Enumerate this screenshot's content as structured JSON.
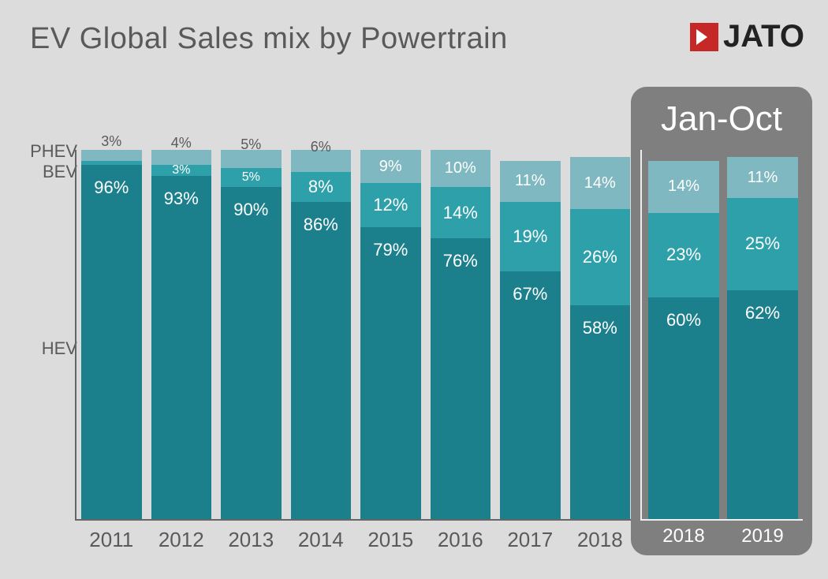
{
  "title": "EV Global Sales mix by Powertrain",
  "logo": {
    "text": "JATO",
    "mark_bg": "#c62828",
    "mark_fg": "#ffffff"
  },
  "colors": {
    "hev": "#1c7f8c",
    "bev": "#2ea0aa",
    "phev": "#7fb8c0",
    "axis": "#666666",
    "panel_bg": "#7f7f7f",
    "panel_axis": "#eeeeee",
    "bg": "#dcdcdc",
    "title_color": "#5a5a5a",
    "label_color": "#5a5a5a",
    "panel_text": "#ffffff"
  },
  "series_labels": {
    "phev": "PHEV",
    "bev": "BEV",
    "hev": "HEV"
  },
  "main_chart": {
    "type": "stacked-bar-100pct",
    "ymax": 100,
    "categories": [
      "2011",
      "2012",
      "2013",
      "2014",
      "2015",
      "2016",
      "2017",
      "2018"
    ],
    "bars": [
      {
        "hev": 96,
        "bev": 1,
        "phev": 3,
        "hev_label": "96%",
        "bev_label": "1%",
        "phev_label": "3%",
        "show_bev_label": false
      },
      {
        "hev": 93,
        "bev": 3,
        "phev": 4,
        "hev_label": "93%",
        "bev_label": "3%",
        "phev_label": "4%"
      },
      {
        "hev": 90,
        "bev": 5,
        "phev": 5,
        "hev_label": "90%",
        "bev_label": "5%",
        "phev_label": "5%"
      },
      {
        "hev": 86,
        "bev": 8,
        "phev": 6,
        "hev_label": "86%",
        "bev_label": "8%",
        "phev_label": "6%"
      },
      {
        "hev": 79,
        "bev": 12,
        "phev": 9,
        "hev_label": "79%",
        "bev_label": "12%",
        "phev_label": "9%"
      },
      {
        "hev": 76,
        "bev": 14,
        "phev": 10,
        "hev_label": "76%",
        "bev_label": "14%",
        "phev_label": "10%"
      },
      {
        "hev": 67,
        "bev": 19,
        "phev": 11,
        "hev_label": "67%",
        "bev_label": "19%",
        "phev_label": "11%"
      },
      {
        "hev": 58,
        "bev": 26,
        "phev": 14,
        "hev_label": "58%",
        "bev_label": "26%",
        "phev_label": "14%"
      }
    ]
  },
  "panel": {
    "title": "Jan-Oct",
    "categories": [
      "2018",
      "2019"
    ],
    "bars": [
      {
        "hev": 60,
        "bev": 23,
        "phev": 14,
        "hev_label": "60%",
        "bev_label": "23%",
        "phev_label": "14%"
      },
      {
        "hev": 62,
        "bev": 25,
        "phev": 11,
        "hev_label": "62%",
        "bev_label": "25%",
        "phev_label": "11%"
      }
    ]
  },
  "fontsizes": {
    "title": 38,
    "axis_label": 26,
    "data_label": 22,
    "panel_title": 44
  }
}
